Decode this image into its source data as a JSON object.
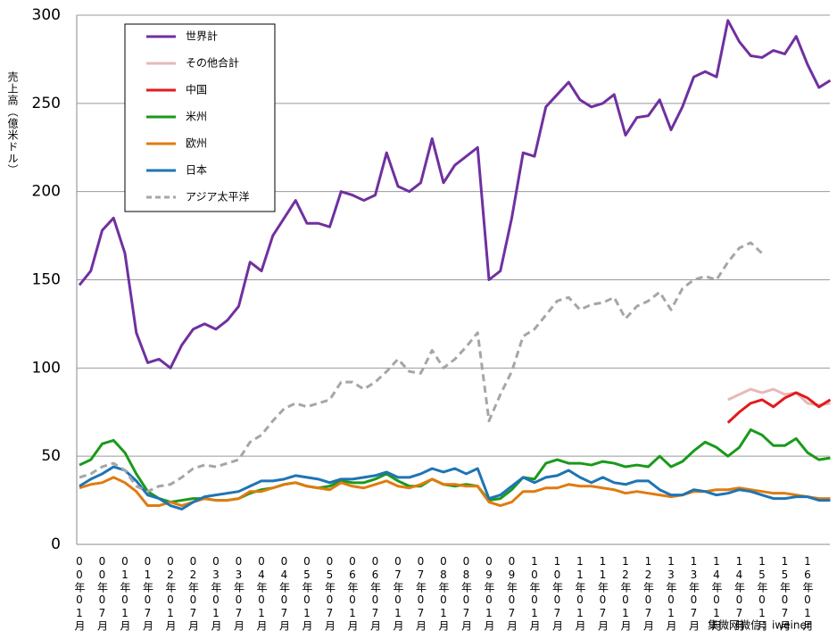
{
  "chart_data": {
    "type": "line",
    "y_label": "売上高（億米ドル）",
    "watermark": "集微网微信：iweiner",
    "ylim": [
      0,
      300
    ],
    "yticks": [
      0,
      50,
      100,
      150,
      200,
      250,
      300
    ],
    "grid": true,
    "categories": [
      "00年01月",
      null,
      "00年07月",
      null,
      "01年01月",
      null,
      "01年07月",
      null,
      "02年01月",
      null,
      "02年07月",
      null,
      "03年01月",
      null,
      "03年07月",
      null,
      "04年01月",
      null,
      "04年07月",
      null,
      "05年01月",
      null,
      "05年07月",
      null,
      "06年01月",
      null,
      "06年07月",
      null,
      "07年01月",
      null,
      "07年07月",
      null,
      "08年01月",
      null,
      "08年07月",
      null,
      "09年01月",
      null,
      "09年07月",
      null,
      "10年01月",
      null,
      "10年07月",
      null,
      "11年01月",
      null,
      "11年07月",
      null,
      "12年01月",
      null,
      "12年07月",
      null,
      "13年01月",
      null,
      "13年07月",
      null,
      "14年01月",
      null,
      "14年07月",
      null,
      "15年01月",
      null,
      "15年07月",
      null,
      "16年01月",
      null,
      null
    ],
    "series": [
      {
        "name": "世界計",
        "color": "#7030a0",
        "style": "solid",
        "values": [
          147,
          155,
          178,
          185,
          165,
          120,
          103,
          105,
          100,
          113,
          122,
          125,
          122,
          127,
          135,
          160,
          155,
          175,
          185,
          195,
          182,
          182,
          180,
          200,
          198,
          195,
          198,
          222,
          203,
          200,
          205,
          230,
          205,
          215,
          220,
          225,
          150,
          155,
          185,
          222,
          220,
          248,
          255,
          262,
          252,
          248,
          250,
          255,
          232,
          242,
          243,
          252,
          235,
          248,
          265,
          268,
          265,
          297,
          285,
          277,
          276,
          280,
          278,
          288,
          272,
          259,
          263
        ]
      },
      {
        "name": "その他合計",
        "color": "#e6b9b8",
        "style": "solid",
        "values": [
          null,
          null,
          null,
          null,
          null,
          null,
          null,
          null,
          null,
          null,
          null,
          null,
          null,
          null,
          null,
          null,
          null,
          null,
          null,
          null,
          null,
          null,
          null,
          null,
          null,
          null,
          null,
          null,
          null,
          null,
          null,
          null,
          null,
          null,
          null,
          null,
          null,
          null,
          null,
          null,
          null,
          null,
          null,
          null,
          null,
          null,
          null,
          null,
          null,
          null,
          null,
          null,
          null,
          null,
          null,
          null,
          null,
          82,
          85,
          88,
          86,
          88,
          85,
          86,
          80,
          79,
          80
        ]
      },
      {
        "name": "中国",
        "color": "#e31a1c",
        "style": "solid",
        "values": [
          null,
          null,
          null,
          null,
          null,
          null,
          null,
          null,
          null,
          null,
          null,
          null,
          null,
          null,
          null,
          null,
          null,
          null,
          null,
          null,
          null,
          null,
          null,
          null,
          null,
          null,
          null,
          null,
          null,
          null,
          null,
          null,
          null,
          null,
          null,
          null,
          null,
          null,
          null,
          null,
          null,
          null,
          null,
          null,
          null,
          null,
          null,
          null,
          null,
          null,
          null,
          null,
          null,
          null,
          null,
          null,
          null,
          69,
          75,
          80,
          82,
          78,
          83,
          86,
          83,
          78,
          82
        ]
      },
      {
        "name": "米州",
        "color": "#1a9a1a",
        "style": "solid",
        "values": [
          45,
          48,
          57,
          59,
          52,
          40,
          30,
          26,
          24,
          25,
          26,
          26,
          25,
          25,
          26,
          29,
          31,
          32,
          34,
          35,
          33,
          32,
          33,
          36,
          35,
          35,
          37,
          40,
          36,
          33,
          33,
          37,
          34,
          33,
          34,
          33,
          25,
          26,
          31,
          38,
          37,
          46,
          48,
          46,
          46,
          45,
          47,
          46,
          44,
          45,
          44,
          50,
          44,
          47,
          53,
          58,
          55,
          50,
          55,
          65,
          62,
          56,
          56,
          60,
          52,
          48,
          49
        ]
      },
      {
        "name": "欧州",
        "color": "#e07b10",
        "style": "solid",
        "values": [
          32,
          34,
          35,
          38,
          35,
          30,
          22,
          22,
          24,
          22,
          24,
          26,
          25,
          25,
          26,
          30,
          30,
          32,
          34,
          35,
          33,
          32,
          31,
          35,
          33,
          32,
          34,
          36,
          33,
          32,
          34,
          37,
          34,
          34,
          33,
          33,
          24,
          22,
          24,
          30,
          30,
          32,
          32,
          34,
          33,
          33,
          32,
          31,
          29,
          30,
          29,
          28,
          27,
          28,
          30,
          30,
          31,
          31,
          32,
          31,
          30,
          29,
          29,
          28,
          27,
          26,
          26
        ]
      },
      {
        "name": "日本",
        "color": "#1f74b4",
        "style": "solid",
        "values": [
          33,
          37,
          40,
          44,
          42,
          36,
          28,
          26,
          22,
          20,
          24,
          27,
          28,
          29,
          30,
          33,
          36,
          36,
          37,
          39,
          38,
          37,
          35,
          37,
          37,
          38,
          39,
          41,
          38,
          38,
          40,
          43,
          41,
          43,
          40,
          43,
          26,
          28,
          33,
          38,
          35,
          38,
          39,
          42,
          38,
          35,
          38,
          35,
          34,
          36,
          36,
          31,
          28,
          28,
          31,
          30,
          28,
          29,
          31,
          30,
          28,
          26,
          26,
          27,
          27,
          25,
          25
        ]
      },
      {
        "name": "アジア太平洋",
        "color": "#a6a6a6",
        "style": "dashed",
        "values": [
          38,
          40,
          44,
          46,
          42,
          33,
          30,
          33,
          34,
          38,
          43,
          45,
          44,
          46,
          48,
          58,
          62,
          70,
          77,
          80,
          78,
          80,
          82,
          92,
          92,
          88,
          92,
          98,
          105,
          98,
          97,
          110,
          100,
          105,
          112,
          120,
          70,
          85,
          98,
          118,
          122,
          130,
          138,
          140,
          133,
          136,
          137,
          140,
          128,
          135,
          138,
          143,
          133,
          145,
          150,
          152,
          150,
          160,
          168,
          171,
          165,
          null,
          null,
          null,
          null,
          null,
          null
        ]
      }
    ]
  }
}
